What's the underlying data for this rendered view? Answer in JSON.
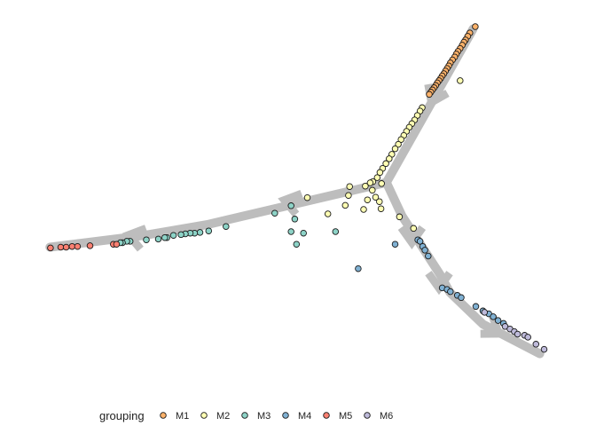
{
  "chart_data": {
    "type": "scatter",
    "title": "",
    "xlabel": "",
    "ylabel": "",
    "grid": false,
    "axes_visible": false,
    "xlim": [
      0,
      100
    ],
    "ylim": [
      0,
      100
    ],
    "legend": {
      "title": "grouping",
      "position": "bottom",
      "items": [
        {
          "label": "M1",
          "color": "#FDB26A"
        },
        {
          "label": "M2",
          "color": "#FFFFB3"
        },
        {
          "label": "M3",
          "color": "#8DD3C7"
        },
        {
          "label": "M4",
          "color": "#80B1D3"
        },
        {
          "label": "M5",
          "color": "#FB8072"
        },
        {
          "label": "M6",
          "color": "#BEBADA"
        }
      ]
    },
    "trajectory": {
      "color": "#BDBDBD",
      "branches": [
        {
          "path": [
            [
              66.4,
              55.5
            ],
            [
              82.4,
              97.0
            ]
          ],
          "arrow_at": [
            75.3,
            79.0
          ],
          "arrow_dir": "down-left"
        },
        {
          "path": [
            [
              66.4,
              55.5
            ],
            [
              33.3,
              44.1
            ],
            [
              21.7,
              41.2
            ],
            [
              4.3,
              38.0
            ]
          ],
          "arrow_at": [
            48.9,
            50.2
          ],
          "arrow_dir": "left"
        },
        {
          "path": [
            [
              66.4,
              55.5
            ],
            [
              69.3,
              46.4
            ],
            [
              76.3,
              30.6
            ],
            [
              78.1,
              25.8
            ],
            [
              84.2,
              17.2
            ],
            [
              94.7,
              9.2
            ]
          ],
          "arrow_at": [
            71.1,
            41.3
          ],
          "arrow_dir": "down"
        }
      ],
      "secondary_arrows": [
        {
          "at": [
            76.1,
            29.0
          ],
          "dir": "down"
        },
        {
          "at": [
            86.0,
            15.8
          ],
          "dir": "down-right"
        },
        {
          "at": [
            20.2,
            40.8
          ],
          "dir": "left"
        }
      ]
    },
    "series": [
      {
        "name": "M1",
        "color": "#FDB26A",
        "points": [
          [
            82.8,
            97.6
          ],
          [
            81.8,
            95.9
          ],
          [
            81.4,
            95.0
          ],
          [
            81.0,
            94.0
          ],
          [
            80.7,
            93.4
          ],
          [
            80.4,
            92.6
          ],
          [
            80.0,
            91.7
          ],
          [
            79.6,
            90.9
          ],
          [
            79.3,
            90.2
          ],
          [
            79.0,
            89.4
          ],
          [
            78.6,
            88.6
          ],
          [
            78.2,
            87.8
          ],
          [
            77.9,
            87.0
          ],
          [
            77.6,
            86.3
          ],
          [
            77.3,
            85.6
          ],
          [
            77.0,
            84.9
          ],
          [
            76.7,
            84.3
          ],
          [
            76.4,
            83.6
          ],
          [
            76.1,
            83.0
          ],
          [
            75.8,
            82.4
          ],
          [
            75.5,
            81.7
          ],
          [
            75.2,
            81.1
          ],
          [
            74.9,
            80.5
          ],
          [
            74.6,
            79.9
          ],
          [
            74.3,
            79.3
          ]
        ]
      },
      {
        "name": "M2",
        "color": "#FFFFB3",
        "points": [
          [
            73.0,
            75.7
          ],
          [
            72.6,
            74.8
          ],
          [
            72.1,
            73.6
          ],
          [
            71.6,
            72.4
          ],
          [
            71.1,
            71.4
          ],
          [
            70.6,
            70.4
          ],
          [
            70.1,
            69.3
          ],
          [
            69.6,
            68.2
          ],
          [
            69.1,
            67.1
          ],
          [
            68.6,
            65.8
          ],
          [
            68.0,
            64.6
          ],
          [
            67.4,
            63.1
          ],
          [
            66.9,
            61.9
          ],
          [
            66.3,
            60.6
          ],
          [
            65.7,
            59.3
          ],
          [
            65.2,
            58.2
          ],
          [
            64.7,
            56.8
          ],
          [
            63.9,
            55.7
          ],
          [
            63.4,
            55.4
          ],
          [
            65.5,
            55.2
          ],
          [
            62.5,
            54.5
          ],
          [
            63.8,
            53.4
          ],
          [
            59.6,
            54.4
          ],
          [
            64.4,
            51.5
          ],
          [
            65.1,
            50.3
          ],
          [
            59.4,
            52.0
          ],
          [
            62.9,
            50.8
          ],
          [
            58.8,
            49.3
          ],
          [
            65.4,
            48.4
          ],
          [
            51.8,
            51.4
          ],
          [
            62.2,
            48.2
          ],
          [
            55.6,
            47.0
          ],
          [
            68.8,
            46.2
          ],
          [
            71.4,
            43.1
          ],
          [
            80.0,
            83.0
          ]
        ]
      },
      {
        "name": "M3",
        "color": "#8DD3C7",
        "points": [
          [
            48.8,
            49.2
          ],
          [
            45.8,
            47.2
          ],
          [
            49.5,
            45.6
          ],
          [
            36.8,
            43.6
          ],
          [
            33.6,
            42.4
          ],
          [
            32.0,
            42.0
          ],
          [
            31.0,
            41.8
          ],
          [
            30.2,
            41.8
          ],
          [
            29.3,
            41.6
          ],
          [
            28.5,
            41.4
          ],
          [
            27.1,
            41.2
          ],
          [
            25.9,
            40.6
          ],
          [
            25.5,
            40.6
          ],
          [
            24.3,
            40.2
          ],
          [
            22.1,
            40.0
          ],
          [
            19.1,
            39.6
          ],
          [
            18.5,
            39.6
          ],
          [
            17.7,
            39.2
          ],
          [
            17.3,
            39.2
          ],
          [
            48.8,
            42.2
          ],
          [
            51.1,
            41.8
          ],
          [
            57.0,
            42.2
          ],
          [
            49.8,
            38.8
          ]
        ]
      },
      {
        "name": "M4",
        "color": "#80B1D3",
        "points": [
          [
            68.0,
            38.8
          ],
          [
            72.2,
            40.0
          ],
          [
            72.6,
            39.6
          ],
          [
            73.1,
            38.2
          ],
          [
            73.5,
            37.2
          ],
          [
            74.1,
            35.6
          ],
          [
            61.2,
            32.2
          ],
          [
            76.7,
            27.0
          ],
          [
            77.6,
            26.6
          ],
          [
            78.2,
            26.0
          ],
          [
            79.5,
            25.0
          ],
          [
            80.2,
            24.4
          ],
          [
            82.9,
            22.0
          ],
          [
            84.2,
            20.8
          ],
          [
            85.3,
            20.0
          ],
          [
            86.1,
            19.2
          ],
          [
            87.0,
            18.2
          ],
          [
            88.0,
            17.4
          ]
        ]
      },
      {
        "name": "M5",
        "color": "#FB8072",
        "points": [
          [
            4.4,
            37.8
          ],
          [
            6.3,
            38.0
          ],
          [
            7.3,
            38.0
          ],
          [
            8.4,
            38.2
          ],
          [
            9.4,
            38.2
          ],
          [
            11.7,
            38.4
          ],
          [
            16.0,
            38.8
          ],
          [
            16.6,
            38.8
          ]
        ]
      },
      {
        "name": "M6",
        "color": "#BEBADA",
        "points": [
          [
            88.3,
            16.6
          ],
          [
            89.2,
            15.9
          ],
          [
            90.0,
            15.2
          ],
          [
            90.6,
            14.5
          ],
          [
            91.9,
            14.2
          ],
          [
            92.5,
            13.7
          ],
          [
            94.0,
            11.8
          ],
          [
            95.5,
            10.4
          ],
          [
            84.5,
            20.4
          ]
        ]
      }
    ]
  }
}
